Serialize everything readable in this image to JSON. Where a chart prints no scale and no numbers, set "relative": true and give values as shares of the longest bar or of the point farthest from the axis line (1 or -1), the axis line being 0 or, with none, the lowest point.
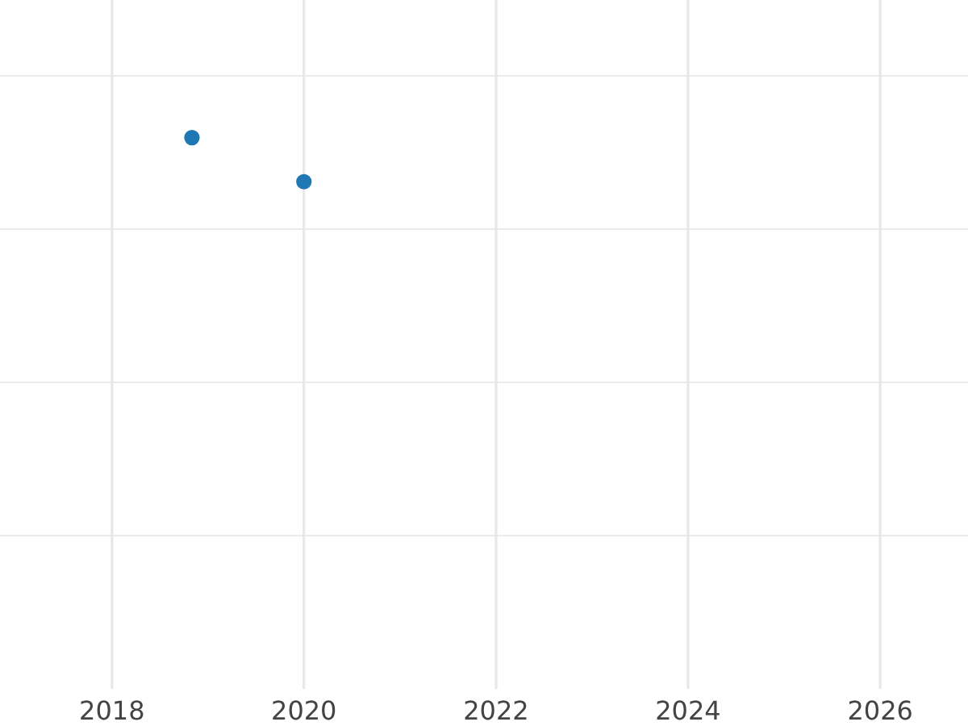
{
  "chart_data": {
    "type": "scatter",
    "x": [
      "2018-11",
      "2020-01"
    ],
    "values": [
      1,
      0.92
    ],
    "relative": true,
    "color": "#1f77b4",
    "xlim": [
      "2016-11",
      "2026-12"
    ],
    "xticks": [
      "2018",
      "2020",
      "2022",
      "2024",
      "2026"
    ],
    "grid": true,
    "marker": "circle"
  }
}
